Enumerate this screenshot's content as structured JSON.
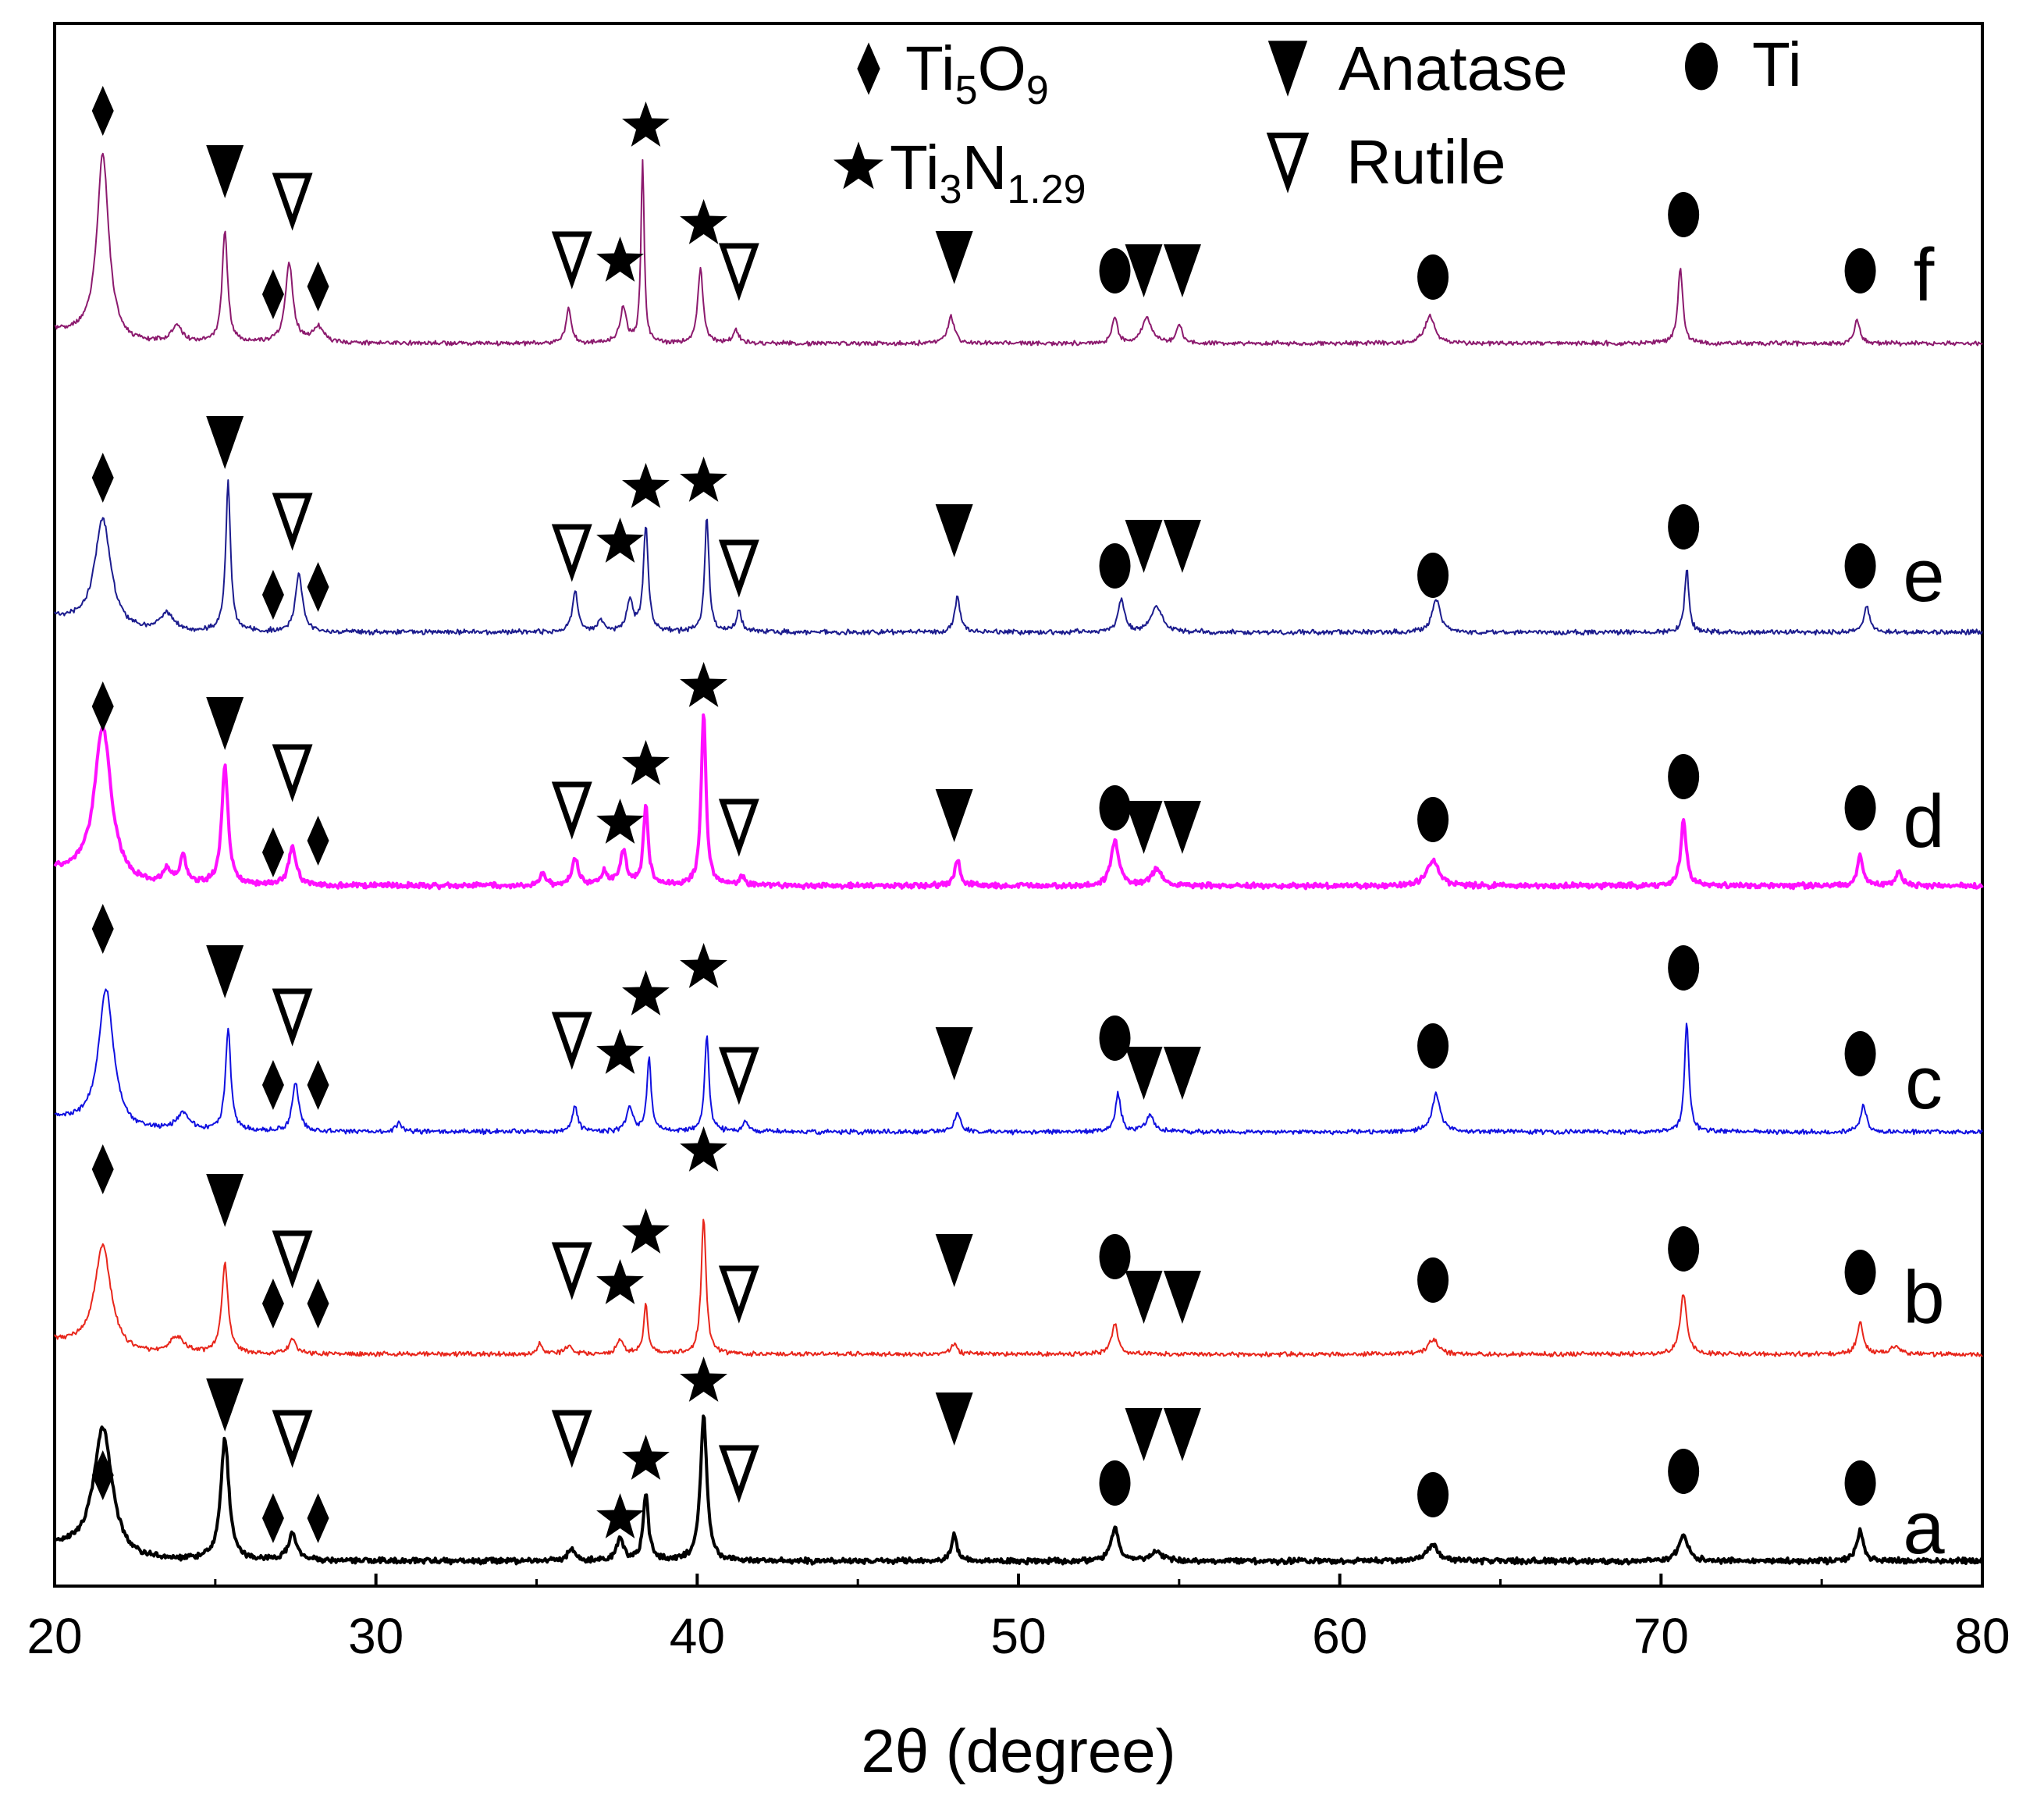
{
  "chart_data": {
    "type": "line",
    "title": "",
    "xlabel": "2θ (degree)",
    "ylabel": "",
    "xlim": [
      20,
      80
    ],
    "xticks": [
      20,
      30,
      40,
      50,
      60,
      70,
      80
    ],
    "xtick_labels": [
      "20",
      "30",
      "40",
      "50",
      "60",
      "70",
      "80"
    ],
    "legend": [
      {
        "symbol": "diamond",
        "label": "Ti",
        "sub1": "5",
        "mid": "O",
        "sub2": "9"
      },
      {
        "symbol": "star",
        "label": "Ti",
        "sub1": "3",
        "mid": "N",
        "sub2": "1.29"
      },
      {
        "symbol": "triangle-filled",
        "label": "Anatase"
      },
      {
        "symbol": "triangle-open",
        "label": "Rutile"
      },
      {
        "symbol": "circle",
        "label": "Ti"
      }
    ],
    "phases": {
      "Ti5O9": [
        21.5,
        26.8,
        28.2
      ],
      "Anatase": [
        25.3,
        48.0,
        53.9,
        55.1
      ],
      "Rutile": [
        27.4,
        36.1,
        41.3
      ],
      "Ti3N1.29": [
        37.6,
        38.4,
        40.2
      ],
      "Ti": [
        53.0,
        62.9,
        70.7,
        76.2
      ]
    },
    "series": [
      {
        "name": "a",
        "color": "#000000",
        "stroke_weight": "thick",
        "peaks": [
          [
            21.5,
            0.55,
            0.35
          ],
          [
            25.3,
            0.52,
            0.15
          ],
          [
            27.4,
            0.12,
            0.15
          ],
          [
            36.1,
            0.05,
            0.15
          ],
          [
            37.6,
            0.1,
            0.12
          ],
          [
            38.4,
            0.28,
            0.1
          ],
          [
            40.2,
            0.62,
            0.12
          ],
          [
            48.0,
            0.12,
            0.1
          ],
          [
            53.0,
            0.14,
            0.15
          ],
          [
            54.3,
            0.04,
            0.2
          ],
          [
            62.9,
            0.07,
            0.2
          ],
          [
            70.7,
            0.11,
            0.18
          ],
          [
            76.2,
            0.13,
            0.12
          ]
        ]
      },
      {
        "name": "b",
        "color": "#e8261b",
        "stroke_weight": "thin",
        "peaks": [
          [
            21.5,
            0.52,
            0.3
          ],
          [
            23.8,
            0.08,
            0.25
          ],
          [
            25.3,
            0.44,
            0.12
          ],
          [
            27.4,
            0.08,
            0.12
          ],
          [
            35.1,
            0.05,
            0.1
          ],
          [
            36.0,
            0.04,
            0.15
          ],
          [
            37.6,
            0.07,
            0.12
          ],
          [
            38.4,
            0.24,
            0.08
          ],
          [
            40.2,
            0.68,
            0.09
          ],
          [
            48.0,
            0.05,
            0.12
          ],
          [
            53.0,
            0.15,
            0.12
          ],
          [
            62.9,
            0.07,
            0.2
          ],
          [
            70.7,
            0.3,
            0.12
          ],
          [
            76.2,
            0.15,
            0.12
          ],
          [
            77.3,
            0.04,
            0.15
          ]
        ]
      },
      {
        "name": "c",
        "color": "#1010e0",
        "stroke_weight": "thin",
        "peaks": [
          [
            21.6,
            0.66,
            0.28
          ],
          [
            24.0,
            0.08,
            0.25
          ],
          [
            25.4,
            0.48,
            0.1
          ],
          [
            27.5,
            0.23,
            0.12
          ],
          [
            30.7,
            0.04,
            0.1
          ],
          [
            36.2,
            0.12,
            0.1
          ],
          [
            37.9,
            0.11,
            0.12
          ],
          [
            38.5,
            0.35,
            0.08
          ],
          [
            40.3,
            0.46,
            0.08
          ],
          [
            41.5,
            0.05,
            0.1
          ],
          [
            48.1,
            0.1,
            0.1
          ],
          [
            53.1,
            0.18,
            0.1
          ],
          [
            54.1,
            0.08,
            0.15
          ],
          [
            63.0,
            0.18,
            0.15
          ],
          [
            70.8,
            0.53,
            0.08
          ],
          [
            76.3,
            0.13,
            0.1
          ]
        ]
      },
      {
        "name": "d",
        "color": "#ff10ff",
        "stroke_weight": "thick",
        "peaks": [
          [
            21.5,
            0.68,
            0.32
          ],
          [
            23.5,
            0.06,
            0.15
          ],
          [
            24.0,
            0.12,
            0.12
          ],
          [
            25.3,
            0.52,
            0.12
          ],
          [
            27.4,
            0.17,
            0.14
          ],
          [
            35.2,
            0.06,
            0.1
          ],
          [
            36.2,
            0.12,
            0.12
          ],
          [
            37.1,
            0.06,
            0.12
          ],
          [
            37.7,
            0.15,
            0.12
          ],
          [
            38.4,
            0.35,
            0.09
          ],
          [
            40.2,
            0.77,
            0.09
          ],
          [
            41.4,
            0.04,
            0.1
          ],
          [
            48.1,
            0.12,
            0.1
          ],
          [
            53.0,
            0.2,
            0.14
          ],
          [
            54.3,
            0.07,
            0.2
          ],
          [
            62.9,
            0.11,
            0.22
          ],
          [
            70.7,
            0.3,
            0.1
          ],
          [
            76.2,
            0.14,
            0.1
          ],
          [
            77.4,
            0.06,
            0.12
          ]
        ]
      },
      {
        "name": "e",
        "color": "#1c1c8e",
        "stroke_weight": "thin",
        "peaks": [
          [
            21.5,
            0.5,
            0.3
          ],
          [
            23.5,
            0.08,
            0.25
          ],
          [
            25.4,
            0.68,
            0.09
          ],
          [
            27.6,
            0.27,
            0.13
          ],
          [
            36.2,
            0.19,
            0.1
          ],
          [
            37.0,
            0.05,
            0.12
          ],
          [
            37.9,
            0.14,
            0.12
          ],
          [
            38.4,
            0.48,
            0.09
          ],
          [
            40.3,
            0.53,
            0.08
          ],
          [
            41.3,
            0.1,
            0.1
          ],
          [
            48.1,
            0.16,
            0.1
          ],
          [
            53.2,
            0.15,
            0.12
          ],
          [
            54.3,
            0.12,
            0.2
          ],
          [
            63.0,
            0.15,
            0.15
          ],
          [
            70.8,
            0.29,
            0.08
          ],
          [
            76.4,
            0.12,
            0.1
          ]
        ]
      },
      {
        "name": "f",
        "color": "#8c1a6e",
        "stroke_weight": "thin",
        "peaks": [
          [
            21.5,
            0.95,
            0.22
          ],
          [
            23.8,
            0.08,
            0.2
          ],
          [
            25.3,
            0.58,
            0.1
          ],
          [
            27.3,
            0.41,
            0.14
          ],
          [
            28.2,
            0.08,
            0.2
          ],
          [
            36.0,
            0.18,
            0.1
          ],
          [
            37.7,
            0.18,
            0.12
          ],
          [
            38.3,
            0.93,
            0.06
          ],
          [
            40.1,
            0.38,
            0.1
          ],
          [
            41.2,
            0.07,
            0.1
          ],
          [
            47.9,
            0.14,
            0.12
          ],
          [
            53.0,
            0.13,
            0.1
          ],
          [
            54.0,
            0.13,
            0.18
          ],
          [
            55.0,
            0.1,
            0.1
          ],
          [
            62.8,
            0.14,
            0.18
          ],
          [
            70.6,
            0.39,
            0.09
          ],
          [
            76.1,
            0.12,
            0.1
          ]
        ]
      }
    ]
  }
}
